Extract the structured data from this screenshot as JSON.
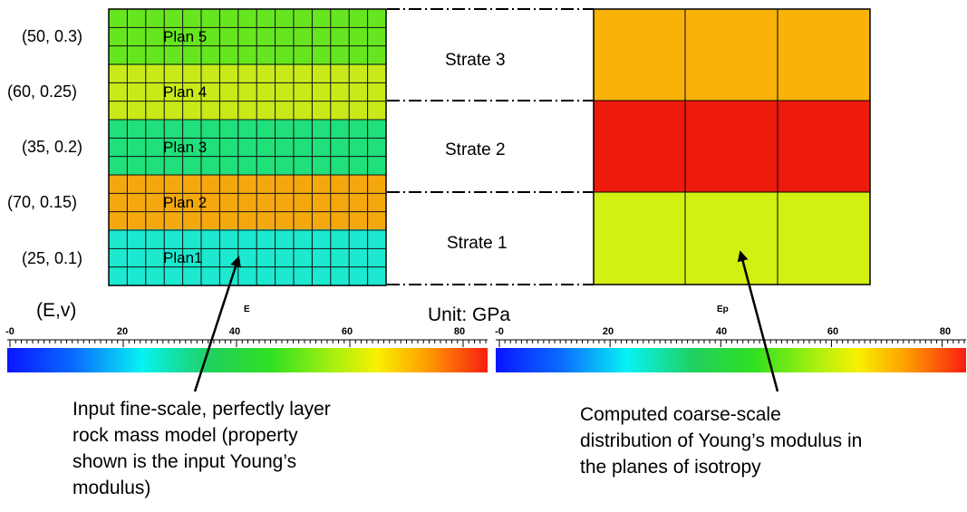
{
  "layers": [
    {
      "pair": "(50, 0.3)",
      "plan": "Plan 5",
      "color": "#66e61f"
    },
    {
      "pair": "(60, 0.25)",
      "plan": "Plan 4",
      "color": "#c9ea18"
    },
    {
      "pair": "(35, 0.2)",
      "plan": "Plan 3",
      "color": "#1fe07a"
    },
    {
      "pair": "(70, 0.15)",
      "plan": "Plan 2",
      "color": "#f5a80e"
    },
    {
      "pair": "(25, 0.1)",
      "plan": "Plan1",
      "color": "#1ce9cf"
    }
  ],
  "strata": [
    {
      "label": "Strate 3",
      "color": "#f9b308"
    },
    {
      "label": "Strate 2",
      "color": "#ee1a0c"
    },
    {
      "label": "Strate 1",
      "color": "#d3f013"
    }
  ],
  "left_colorbar": {
    "title": "E",
    "ticks": [
      "-0",
      "20",
      "40",
      "60",
      "80"
    ]
  },
  "right_colorbar": {
    "title": "Ep",
    "ticks": [
      "-0",
      "20",
      "40",
      "60",
      "80"
    ]
  },
  "legend_label": "(E,v)",
  "unit_label": "Unit: GPa",
  "captions": {
    "left": [
      "Input fine-scale, perfectly layer",
      "rock mass model (property",
      "shown is the input Young’s",
      "modulus)"
    ],
    "right": [
      "Computed coarse-scale",
      "distribution of Young’s modulus in",
      "the planes of isotropy"
    ]
  }
}
